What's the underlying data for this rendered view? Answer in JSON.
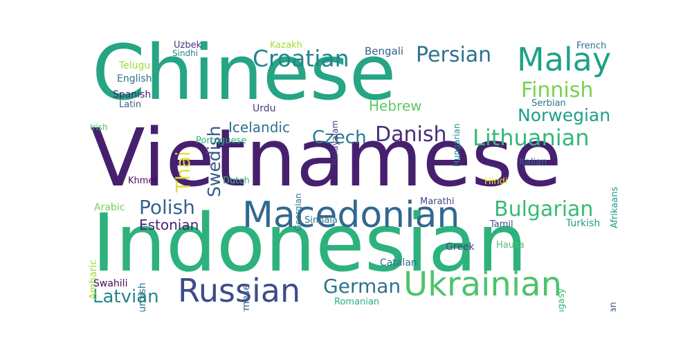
{
  "words": [
    {
      "text": "Chinese",
      "color": "#25a584"
    },
    {
      "text": "Vietnamese",
      "color": "#46206f"
    },
    {
      "text": "Indonesian",
      "color": "#2db27d"
    },
    {
      "text": "Macedonian",
      "color": "#31688e"
    },
    {
      "text": "Ukrainian",
      "color": "#4ec36b"
    },
    {
      "text": "Russian",
      "color": "#3e4a89"
    },
    {
      "text": "Malay",
      "color": "#1fa187"
    },
    {
      "text": "Croatian",
      "color": "#25838e"
    },
    {
      "text": "Persian",
      "color": "#2c728e"
    },
    {
      "text": "Lithuanian",
      "color": "#35b779"
    },
    {
      "text": "Bulgarian",
      "color": "#3aba76"
    },
    {
      "text": "Finnish",
      "color": "#7ad151"
    },
    {
      "text": "Norwegian",
      "color": "#1f9e89"
    },
    {
      "text": "Danish",
      "color": "#472d7b"
    },
    {
      "text": "Polish",
      "color": "#33638d"
    },
    {
      "text": "German",
      "color": "#2c728e"
    },
    {
      "text": "Latvian",
      "color": "#24868e"
    },
    {
      "text": "Czech",
      "color": "#2a788e"
    },
    {
      "text": "Swedish",
      "color": "#38598c"
    },
    {
      "text": "Thai",
      "color": "#e1dd37"
    },
    {
      "text": "Icelandic",
      "color": "#2c718e"
    },
    {
      "text": "Estonian",
      "color": "#482475"
    },
    {
      "text": "Hebrew",
      "color": "#5ec962"
    },
    {
      "text": "Bengali",
      "color": "#365d8d"
    },
    {
      "text": "Kazakh",
      "color": "#a5db36"
    },
    {
      "text": "Uzbek",
      "color": "#463480"
    },
    {
      "text": "Sindhi",
      "color": "#25838e"
    },
    {
      "text": "Telugu",
      "color": "#a0da39"
    },
    {
      "text": "English",
      "color": "#2d708e"
    },
    {
      "text": "Spanish",
      "color": "#482475"
    },
    {
      "text": "Latin",
      "color": "#35608d"
    },
    {
      "text": "Urdu",
      "color": "#443b84"
    },
    {
      "text": "Irish",
      "color": "#4ac16d"
    },
    {
      "text": "Portuguese",
      "color": "#2db27d"
    },
    {
      "text": "Khmer",
      "color": "#46085c"
    },
    {
      "text": "Dutch",
      "color": "#37b878"
    },
    {
      "text": "Arabic",
      "color": "#75d054"
    },
    {
      "text": "Amharic",
      "color": "#a2da37"
    },
    {
      "text": "Kurdish",
      "color": "#2a788e"
    },
    {
      "text": "Swahili",
      "color": "#46075a"
    },
    {
      "text": "Burmese",
      "color": "#355f8d"
    },
    {
      "text": "Romanian",
      "color": "#29af7f"
    },
    {
      "text": "Sinhala",
      "color": "#2a768e"
    },
    {
      "text": "Marathi",
      "color": "#404588"
    },
    {
      "text": "Catalan",
      "color": "#2f6c8e"
    },
    {
      "text": "Greek",
      "color": "#414287"
    },
    {
      "text": "Hausa",
      "color": "#4ac16d"
    },
    {
      "text": "Tamil",
      "color": "#3b528b"
    },
    {
      "text": "Turkish",
      "color": "#1f9e89"
    },
    {
      "text": "Malagasy",
      "color": "#38b977"
    },
    {
      "text": "Belarusian",
      "color": "#38598c"
    },
    {
      "text": "Hindi",
      "color": "#f1e51d"
    },
    {
      "text": "Italian",
      "color": "#31688e"
    },
    {
      "text": "Serbian",
      "color": "#2a788e"
    },
    {
      "text": "French",
      "color": "#2d708e"
    },
    {
      "text": "Afrikaans",
      "color": "#1f9a8a"
    },
    {
      "text": "Hungarian",
      "color": "#228c8d"
    },
    {
      "text": "Malayalam",
      "color": "#453882"
    },
    {
      "text": "Georgian",
      "color": "#2c728e"
    }
  ]
}
